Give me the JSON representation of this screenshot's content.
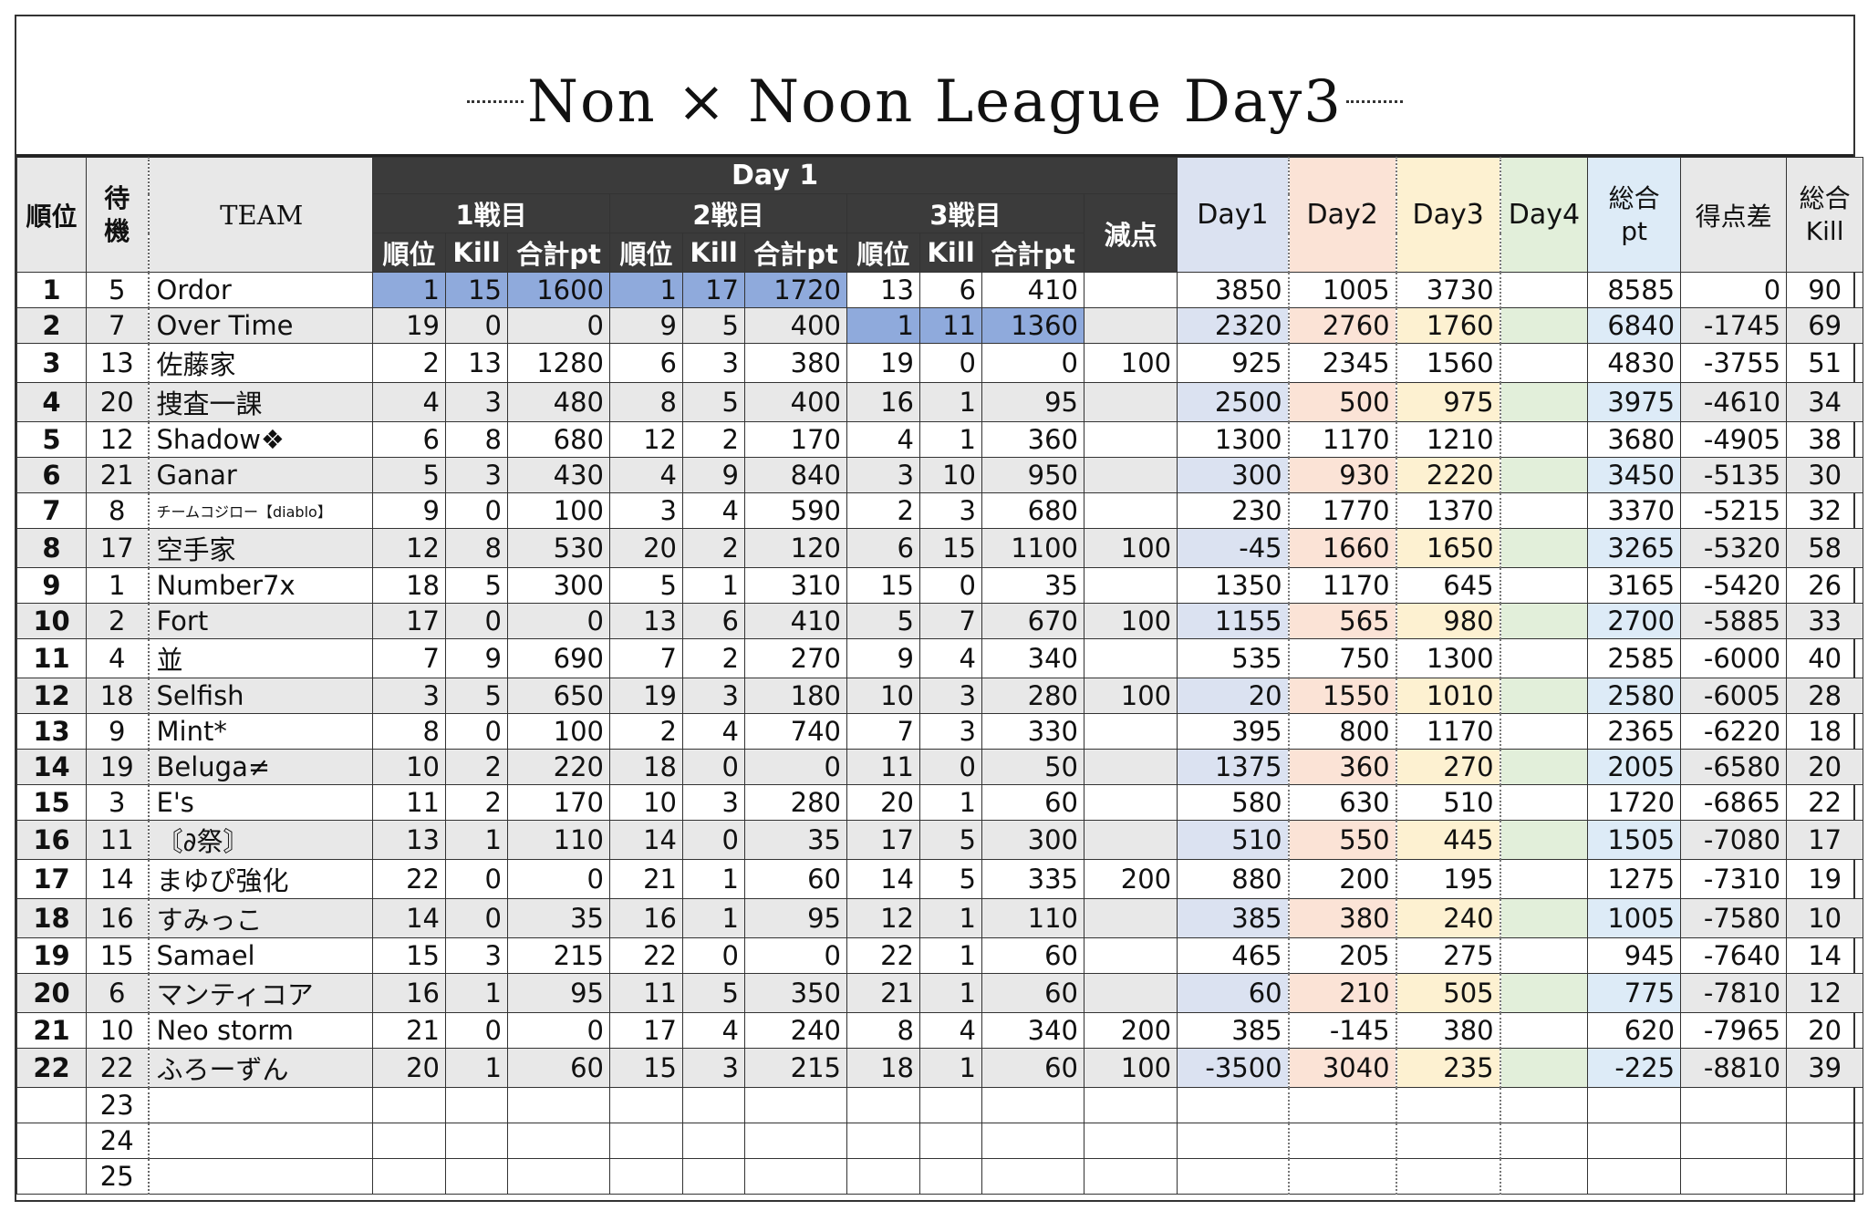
{
  "title": "Non × Noon League Day3",
  "headers": {
    "rank": "順位",
    "standby": "待機",
    "team": "TEAM",
    "day1_group": "Day 1",
    "match1": "1戦目",
    "match2": "2戦目",
    "match3": "3戦目",
    "penalty": "減点",
    "sub_rank": "順位",
    "sub_kill": "Kill",
    "sub_pts": "合計pt",
    "day1": "Day1",
    "day2": "Day2",
    "day3": "Day3",
    "day4": "Day4",
    "total_pt": "総合pt",
    "diff": "得点差",
    "total_kill": "総合Kill"
  },
  "colors": {
    "header_dark": "#3b3b3b",
    "alt_row": "#e8e8e8",
    "highlight": "#8faadc",
    "day1": "#dbe2f1",
    "day2": "#fbe3d6",
    "day3": "#fdf1d1",
    "day4": "#e2efda",
    "total": "#ddebf7"
  },
  "rows": [
    {
      "rank": "1",
      "standby": "5",
      "team": "Ordor",
      "m1": [
        "1",
        "15",
        "1600"
      ],
      "m2": [
        "1",
        "17",
        "1720"
      ],
      "m3": [
        "13",
        "6",
        "410"
      ],
      "penalty": "",
      "day1": "3850",
      "day2": "1005",
      "day3": "3730",
      "day4": "",
      "total": "8585",
      "diff": "0",
      "kill": "90",
      "hl": [
        1,
        2
      ]
    },
    {
      "rank": "2",
      "standby": "7",
      "team": "Over Time",
      "m1": [
        "19",
        "0",
        "0"
      ],
      "m2": [
        "9",
        "5",
        "400"
      ],
      "m3": [
        "1",
        "11",
        "1360"
      ],
      "penalty": "",
      "day1": "2320",
      "day2": "2760",
      "day3": "1760",
      "day4": "",
      "total": "6840",
      "diff": "-1745",
      "kill": "69",
      "hl": [
        3
      ]
    },
    {
      "rank": "3",
      "standby": "13",
      "team": "佐藤家",
      "m1": [
        "2",
        "13",
        "1280"
      ],
      "m2": [
        "6",
        "3",
        "380"
      ],
      "m3": [
        "19",
        "0",
        "0"
      ],
      "penalty": "100",
      "day1": "925",
      "day2": "2345",
      "day3": "1560",
      "day4": "",
      "total": "4830",
      "diff": "-3755",
      "kill": "51",
      "hl": []
    },
    {
      "rank": "4",
      "standby": "20",
      "team": "捜査一課",
      "m1": [
        "4",
        "3",
        "480"
      ],
      "m2": [
        "8",
        "5",
        "400"
      ],
      "m3": [
        "16",
        "1",
        "95"
      ],
      "penalty": "",
      "day1": "2500",
      "day2": "500",
      "day3": "975",
      "day4": "",
      "total": "3975",
      "diff": "-4610",
      "kill": "34",
      "hl": []
    },
    {
      "rank": "5",
      "standby": "12",
      "team": "Shadow❖",
      "m1": [
        "6",
        "8",
        "680"
      ],
      "m2": [
        "12",
        "2",
        "170"
      ],
      "m3": [
        "4",
        "1",
        "360"
      ],
      "penalty": "",
      "day1": "1300",
      "day2": "1170",
      "day3": "1210",
      "day4": "",
      "total": "3680",
      "diff": "-4905",
      "kill": "38",
      "hl": []
    },
    {
      "rank": "6",
      "standby": "21",
      "team": "Ganar",
      "m1": [
        "5",
        "3",
        "430"
      ],
      "m2": [
        "4",
        "9",
        "840"
      ],
      "m3": [
        "3",
        "10",
        "950"
      ],
      "penalty": "",
      "day1": "300",
      "day2": "930",
      "day3": "2220",
      "day4": "",
      "total": "3450",
      "diff": "-5135",
      "kill": "30",
      "hl": []
    },
    {
      "rank": "7",
      "standby": "8",
      "team": "チームコジロー【diablo】",
      "m1": [
        "9",
        "0",
        "100"
      ],
      "m2": [
        "3",
        "4",
        "590"
      ],
      "m3": [
        "2",
        "3",
        "680"
      ],
      "penalty": "",
      "day1": "230",
      "day2": "1770",
      "day3": "1370",
      "day4": "",
      "total": "3370",
      "diff": "-5215",
      "kill": "32",
      "hl": [],
      "small": true
    },
    {
      "rank": "8",
      "standby": "17",
      "team": "空手家",
      "m1": [
        "12",
        "8",
        "530"
      ],
      "m2": [
        "20",
        "2",
        "120"
      ],
      "m3": [
        "6",
        "15",
        "1100"
      ],
      "penalty": "100",
      "day1": "-45",
      "day2": "1660",
      "day3": "1650",
      "day4": "",
      "total": "3265",
      "diff": "-5320",
      "kill": "58",
      "hl": []
    },
    {
      "rank": "9",
      "standby": "1",
      "team": "Number7x",
      "m1": [
        "18",
        "5",
        "300"
      ],
      "m2": [
        "5",
        "1",
        "310"
      ],
      "m3": [
        "15",
        "0",
        "35"
      ],
      "penalty": "",
      "day1": "1350",
      "day2": "1170",
      "day3": "645",
      "day4": "",
      "total": "3165",
      "diff": "-5420",
      "kill": "26",
      "hl": []
    },
    {
      "rank": "10",
      "standby": "2",
      "team": "Fort",
      "m1": [
        "17",
        "0",
        "0"
      ],
      "m2": [
        "13",
        "6",
        "410"
      ],
      "m3": [
        "5",
        "7",
        "670"
      ],
      "penalty": "100",
      "day1": "1155",
      "day2": "565",
      "day3": "980",
      "day4": "",
      "total": "2700",
      "diff": "-5885",
      "kill": "33",
      "hl": []
    },
    {
      "rank": "11",
      "standby": "4",
      "team": "並",
      "m1": [
        "7",
        "9",
        "690"
      ],
      "m2": [
        "7",
        "2",
        "270"
      ],
      "m3": [
        "9",
        "4",
        "340"
      ],
      "penalty": "",
      "day1": "535",
      "day2": "750",
      "day3": "1300",
      "day4": "",
      "total": "2585",
      "diff": "-6000",
      "kill": "40",
      "hl": []
    },
    {
      "rank": "12",
      "standby": "18",
      "team": "Selfish",
      "m1": [
        "3",
        "5",
        "650"
      ],
      "m2": [
        "19",
        "3",
        "180"
      ],
      "m3": [
        "10",
        "3",
        "280"
      ],
      "penalty": "100",
      "day1": "20",
      "day2": "1550",
      "day3": "1010",
      "day4": "",
      "total": "2580",
      "diff": "-6005",
      "kill": "28",
      "hl": []
    },
    {
      "rank": "13",
      "standby": "9",
      "team": "Mint*",
      "m1": [
        "8",
        "0",
        "100"
      ],
      "m2": [
        "2",
        "4",
        "740"
      ],
      "m3": [
        "7",
        "3",
        "330"
      ],
      "penalty": "",
      "day1": "395",
      "day2": "800",
      "day3": "1170",
      "day4": "",
      "total": "2365",
      "diff": "-6220",
      "kill": "18",
      "hl": []
    },
    {
      "rank": "14",
      "standby": "19",
      "team": "Beluga≠",
      "m1": [
        "10",
        "2",
        "220"
      ],
      "m2": [
        "18",
        "0",
        "0"
      ],
      "m3": [
        "11",
        "0",
        "50"
      ],
      "penalty": "",
      "day1": "1375",
      "day2": "360",
      "day3": "270",
      "day4": "",
      "total": "2005",
      "diff": "-6580",
      "kill": "20",
      "hl": []
    },
    {
      "rank": "15",
      "standby": "3",
      "team": "E's",
      "m1": [
        "11",
        "2",
        "170"
      ],
      "m2": [
        "10",
        "3",
        "280"
      ],
      "m3": [
        "20",
        "1",
        "60"
      ],
      "penalty": "",
      "day1": "580",
      "day2": "630",
      "day3": "510",
      "day4": "",
      "total": "1720",
      "diff": "-6865",
      "kill": "22",
      "hl": []
    },
    {
      "rank": "16",
      "standby": "11",
      "team": "〘∂祭〙",
      "m1": [
        "13",
        "1",
        "110"
      ],
      "m2": [
        "14",
        "0",
        "35"
      ],
      "m3": [
        "17",
        "5",
        "300"
      ],
      "penalty": "",
      "day1": "510",
      "day2": "550",
      "day3": "445",
      "day4": "",
      "total": "1505",
      "diff": "-7080",
      "kill": "17",
      "hl": []
    },
    {
      "rank": "17",
      "standby": "14",
      "team": "まゆぴ強化",
      "m1": [
        "22",
        "0",
        "0"
      ],
      "m2": [
        "21",
        "1",
        "60"
      ],
      "m3": [
        "14",
        "5",
        "335"
      ],
      "penalty": "200",
      "day1": "880",
      "day2": "200",
      "day3": "195",
      "day4": "",
      "total": "1275",
      "diff": "-7310",
      "kill": "19",
      "hl": []
    },
    {
      "rank": "18",
      "standby": "16",
      "team": "すみっこ",
      "m1": [
        "14",
        "0",
        "35"
      ],
      "m2": [
        "16",
        "1",
        "95"
      ],
      "m3": [
        "12",
        "1",
        "110"
      ],
      "penalty": "",
      "day1": "385",
      "day2": "380",
      "day3": "240",
      "day4": "",
      "total": "1005",
      "diff": "-7580",
      "kill": "10",
      "hl": []
    },
    {
      "rank": "19",
      "standby": "15",
      "team": "Samael",
      "m1": [
        "15",
        "3",
        "215"
      ],
      "m2": [
        "22",
        "0",
        "0"
      ],
      "m3": [
        "22",
        "1",
        "60"
      ],
      "penalty": "",
      "day1": "465",
      "day2": "205",
      "day3": "275",
      "day4": "",
      "total": "945",
      "diff": "-7640",
      "kill": "14",
      "hl": []
    },
    {
      "rank": "20",
      "standby": "6",
      "team": "マンティコア",
      "m1": [
        "16",
        "1",
        "95"
      ],
      "m2": [
        "11",
        "5",
        "350"
      ],
      "m3": [
        "21",
        "1",
        "60"
      ],
      "penalty": "",
      "day1": "60",
      "day2": "210",
      "day3": "505",
      "day4": "",
      "total": "775",
      "diff": "-7810",
      "kill": "12",
      "hl": []
    },
    {
      "rank": "21",
      "standby": "10",
      "team": "Neo storm",
      "m1": [
        "21",
        "0",
        "0"
      ],
      "m2": [
        "17",
        "4",
        "240"
      ],
      "m3": [
        "8",
        "4",
        "340"
      ],
      "penalty": "200",
      "day1": "385",
      "day2": "-145",
      "day3": "380",
      "day4": "",
      "total": "620",
      "diff": "-7965",
      "kill": "20",
      "hl": []
    },
    {
      "rank": "22",
      "standby": "22",
      "team": "ふろーずん",
      "m1": [
        "20",
        "1",
        "60"
      ],
      "m2": [
        "15",
        "3",
        "215"
      ],
      "m3": [
        "18",
        "1",
        "60"
      ],
      "penalty": "100",
      "day1": "-3500",
      "day2": "3040",
      "day3": "235",
      "day4": "",
      "total": "-225",
      "diff": "-8810",
      "kill": "39",
      "hl": []
    }
  ],
  "empty_rows": [
    "23",
    "24",
    "25"
  ]
}
